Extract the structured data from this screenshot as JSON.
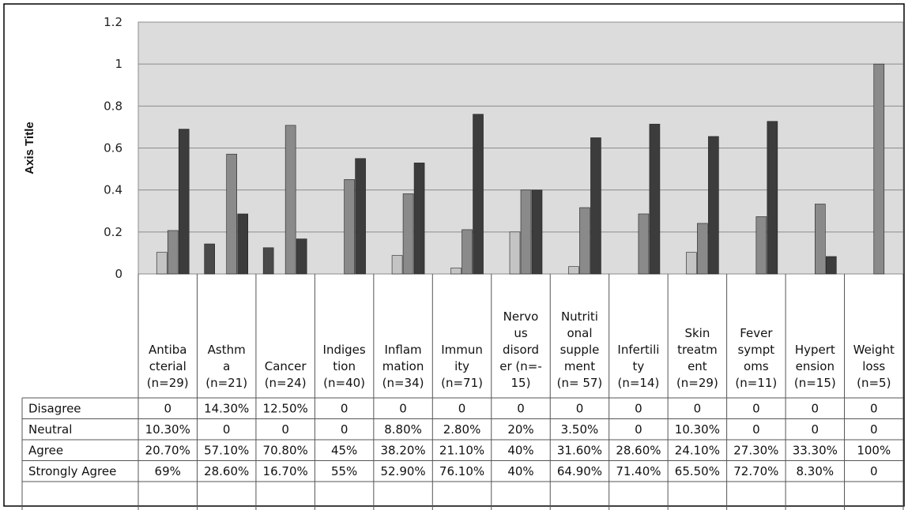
{
  "chart_data": {
    "type": "bar",
    "ylabel": "Axis Title",
    "ylim": [
      0,
      1.2
    ],
    "yticks": [
      "0",
      "0.2",
      "0.4",
      "0.6",
      "0.8",
      "1",
      "1.2"
    ],
    "ytick_values": [
      0,
      0.2,
      0.4,
      0.6,
      0.8,
      1,
      1.2
    ],
    "grid": true,
    "legend": "data-table",
    "categories": [
      [
        "Antiba",
        "cterial",
        "(n=29)"
      ],
      [
        "Asthm",
        "a",
        "(n=21)"
      ],
      [
        "Cancer",
        "(n=24)"
      ],
      [
        "Indiges",
        "tion",
        "(n=40)"
      ],
      [
        "Inflam",
        "mation",
        "(n=34)"
      ],
      [
        "Immun",
        "ity",
        "(n=71)"
      ],
      [
        "Nervo",
        "us",
        "disord",
        "er (n=-",
        "15)"
      ],
      [
        "Nutriti",
        "onal",
        "supple",
        "ment",
        "(n= 57)"
      ],
      [
        "Infertili",
        "ty",
        "(n=14)"
      ],
      [
        "Skin",
        "treatm",
        "ent",
        "(n=29)"
      ],
      [
        "Fever",
        "sympt",
        "oms",
        "(n=11)"
      ],
      [
        "Hypert",
        "ension",
        "(n=15)"
      ],
      [
        "Weight",
        "loss",
        "(n=5)"
      ]
    ],
    "series": [
      {
        "name": "Disagree",
        "color": "#4a4a4a",
        "values": [
          0,
          0.143,
          0.125,
          0,
          0,
          0,
          0,
          0,
          0,
          0,
          0,
          0,
          0
        ],
        "labels": [
          "0",
          "14.30%",
          "12.50%",
          "0",
          "0",
          "0",
          "0",
          "0",
          "0",
          "0",
          "0",
          "0",
          "0"
        ]
      },
      {
        "name": "Neutral",
        "color": "#c4c4c4",
        "values": [
          0.103,
          0,
          0,
          0,
          0.088,
          0.028,
          0.2,
          0.035,
          0,
          0.103,
          0,
          0,
          0
        ],
        "labels": [
          "10.30%",
          "0",
          "0",
          "0",
          "8.80%",
          "2.80%",
          "20%",
          "3.50%",
          "0",
          "10.30%",
          "0",
          "0",
          "0"
        ]
      },
      {
        "name": "Agree",
        "color": "#8a8a8a",
        "values": [
          0.207,
          0.571,
          0.708,
          0.45,
          0.382,
          0.211,
          0.4,
          0.316,
          0.286,
          0.241,
          0.273,
          0.333,
          1.0
        ],
        "labels": [
          "20.70%",
          "57.10%",
          "70.80%",
          "45%",
          "38.20%",
          "21.10%",
          "40%",
          "31.60%",
          "28.60%",
          "24.10%",
          "27.30%",
          "33.30%",
          "100%"
        ]
      },
      {
        "name": "Strongly Agree",
        "color": "#3c3c3c",
        "values": [
          0.69,
          0.286,
          0.167,
          0.55,
          0.529,
          0.761,
          0.4,
          0.649,
          0.714,
          0.655,
          0.727,
          0.083,
          0
        ],
        "labels": [
          "69%",
          "28.60%",
          "16.70%",
          "55%",
          "52.90%",
          "76.10%",
          "40%",
          "64.90%",
          "71.40%",
          "65.50%",
          "72.70%",
          "8.30%",
          "0"
        ]
      }
    ]
  }
}
